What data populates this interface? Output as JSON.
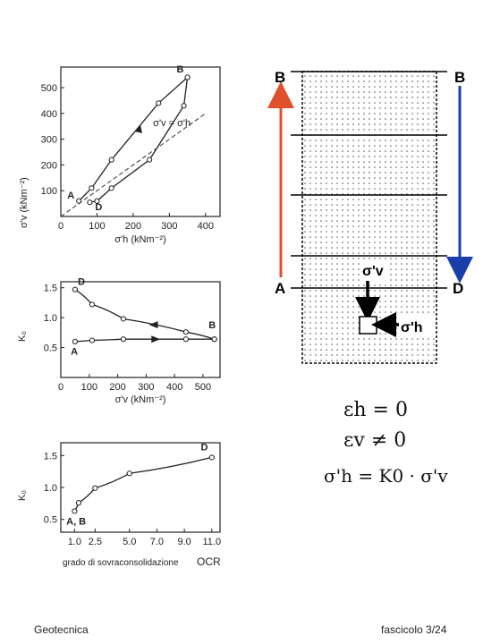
{
  "chart_data": [
    {
      "type": "line",
      "xlabel": "σ'h (kNm⁻²)",
      "ylabel": "σ'v (kNm⁻²)",
      "x_ticks": [
        "0",
        "100",
        "200",
        "300",
        "400"
      ],
      "y_ticks": [
        "100",
        "200",
        "300",
        "400",
        "500"
      ],
      "xlim": [
        0,
        440
      ],
      "ylim": [
        0,
        580
      ],
      "reference_line_label": "σ'v = σ'h",
      "point_labels": [
        "A",
        "B",
        "D"
      ],
      "series": [
        {
          "values": [
            [
              50,
              60
            ],
            [
              85,
              110
            ],
            [
              140,
              220
            ],
            [
              270,
              440
            ],
            [
              350,
              540
            ]
          ]
        },
        {
          "values": [
            [
              350,
              540
            ],
            [
              340,
              430
            ],
            [
              245,
              220
            ],
            [
              140,
              110
            ],
            [
              100,
              60
            ],
            [
              80,
              55
            ]
          ]
        }
      ]
    },
    {
      "type": "line",
      "xlabel": "σ'v (kNm⁻²)",
      "ylabel": "K₀",
      "x_ticks": [
        "0",
        "100",
        "200",
        "300",
        "400",
        "500"
      ],
      "y_ticks": [
        "0.5",
        "1.0",
        "1.5"
      ],
      "xlim": [
        0,
        560
      ],
      "ylim": [
        0,
        1.6
      ],
      "point_labels": [
        "A",
        "B",
        "D"
      ],
      "series": [
        {
          "values": [
            [
              50,
              0.6
            ],
            [
              110,
              0.62
            ],
            [
              220,
              0.64
            ],
            [
              440,
              0.64
            ],
            [
              540,
              0.64
            ]
          ]
        },
        {
          "values": [
            [
              50,
              1.47
            ],
            [
              110,
              1.22
            ],
            [
              220,
              0.98
            ],
            [
              440,
              0.76
            ],
            [
              540,
              0.64
            ]
          ]
        }
      ]
    },
    {
      "type": "line",
      "xlabel": "grado di sovraconsolidazione",
      "xlabel_suffix": "OCR",
      "ylabel": "K₀",
      "x_ticks": [
        "1.0",
        "2.5",
        "5.0",
        "7.0",
        "9.0",
        "11.0"
      ],
      "x_tick_values": [
        1.0,
        2.5,
        5.0,
        7.0,
        9.0,
        11.0
      ],
      "y_ticks": [
        "0.5",
        "1.0",
        "1.5"
      ],
      "xlim": [
        0,
        11.6
      ],
      "ylim": [
        0.3,
        1.7
      ],
      "point_labels": [
        "A, B",
        "D"
      ],
      "series": [
        {
          "values": [
            [
              1.0,
              0.63
            ],
            [
              1.3,
              0.76
            ],
            [
              2.5,
              0.99
            ],
            [
              5.0,
              1.22
            ],
            [
              11.0,
              1.47
            ]
          ]
        }
      ]
    }
  ],
  "diagram": {
    "left_top_label": "B",
    "right_top_label": "B",
    "left_bottom_label": "A",
    "right_bottom_label": "D",
    "sigma_v_label": "σ'v",
    "sigma_h_label": "σ'h",
    "left_arrow_color": "#e0502a",
    "right_arrow_color": "#1a3faa"
  },
  "equations": {
    "eq1": "εh = 0",
    "eq2": "εv ≠ 0",
    "eq3": "σ'h = K0 · σ'v"
  },
  "footer": {
    "left": "Geotecnica",
    "right": "fascicolo 3/24"
  }
}
